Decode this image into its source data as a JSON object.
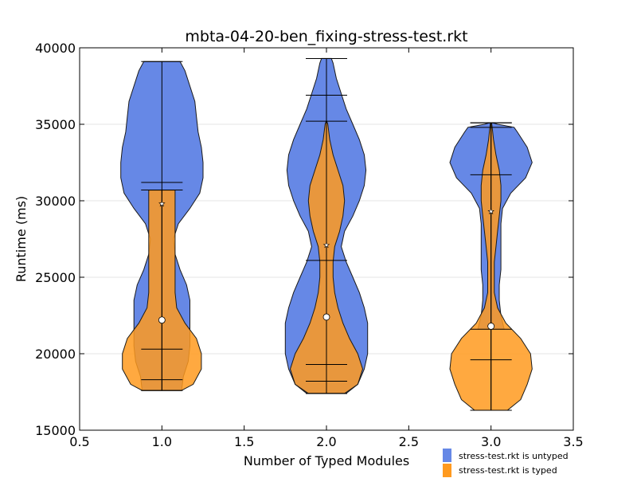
{
  "chart_data": {
    "type": "violin",
    "title": "mbta-04-20-ben_fixing-stress-test.rkt",
    "xlabel": "Number of Typed Modules",
    "ylabel": "Runtime (ms)",
    "xlim": [
      0.5,
      3.5
    ],
    "ylim": [
      15000,
      40000
    ],
    "xticks": [
      "0.5",
      "1.0",
      "1.5",
      "2.0",
      "2.5",
      "3.0",
      "3.5"
    ],
    "xtick_values": [
      0.5,
      1.0,
      1.5,
      2.0,
      2.5,
      3.0,
      3.5
    ],
    "yticks": [
      "15000",
      "20000",
      "25000",
      "30000",
      "35000",
      "40000"
    ],
    "ytick_values": [
      15000,
      20000,
      25000,
      30000,
      35000,
      40000
    ],
    "grid": "horizontal",
    "legend_position": "below-right",
    "series": [
      {
        "name": "stress-test.rkt is untyped",
        "color": "#6688e6",
        "violins": [
          {
            "x": 1.0,
            "min": 17600,
            "max": 39100,
            "mean": 22200,
            "lines": [
              31200,
              20300
            ],
            "profile": [
              [
                17600,
                0.12
              ],
              [
                18500,
                0.13
              ],
              [
                19500,
                0.16
              ],
              [
                20500,
                0.17
              ],
              [
                21500,
                0.17
              ],
              [
                22500,
                0.17
              ],
              [
                23500,
                0.17
              ],
              [
                24500,
                0.15
              ],
              [
                25500,
                0.11
              ],
              [
                26500,
                0.08
              ],
              [
                27500,
                0.07
              ],
              [
                28500,
                0.1
              ],
              [
                29500,
                0.17
              ],
              [
                30500,
                0.23
              ],
              [
                31500,
                0.25
              ],
              [
                32500,
                0.25
              ],
              [
                33500,
                0.24
              ],
              [
                34500,
                0.22
              ],
              [
                35500,
                0.21
              ],
              [
                36500,
                0.2
              ],
              [
                37500,
                0.17
              ],
              [
                38500,
                0.14
              ],
              [
                39100,
                0.11
              ]
            ]
          },
          {
            "x": 2.0,
            "min": 17400,
            "max": 39300,
            "mean": 22400,
            "lines": [
              36900,
              26100,
              19300
            ],
            "profile": [
              [
                17400,
                0.12
              ],
              [
                18000,
                0.19
              ],
              [
                19000,
                0.23
              ],
              [
                20000,
                0.25
              ],
              [
                21000,
                0.25
              ],
              [
                22000,
                0.25
              ],
              [
                23000,
                0.23
              ],
              [
                24000,
                0.2
              ],
              [
                25000,
                0.16
              ],
              [
                26000,
                0.12
              ],
              [
                27000,
                0.09
              ],
              [
                28000,
                0.11
              ],
              [
                29000,
                0.16
              ],
              [
                30000,
                0.2
              ],
              [
                31000,
                0.23
              ],
              [
                32000,
                0.24
              ],
              [
                33000,
                0.23
              ],
              [
                34000,
                0.2
              ],
              [
                35000,
                0.16
              ],
              [
                36000,
                0.12
              ],
              [
                37000,
                0.09
              ],
              [
                38000,
                0.06
              ],
              [
                39000,
                0.04
              ],
              [
                39300,
                0.03
              ]
            ]
          },
          {
            "x": 3.0,
            "min": 16300,
            "max": 35100,
            "mean": 21800,
            "lines": [
              34800,
              31700,
              21600
            ],
            "profile": [
              [
                21600,
                0.08
              ],
              [
                22500,
                0.06
              ],
              [
                23500,
                0.05
              ],
              [
                24500,
                0.05
              ],
              [
                25500,
                0.06
              ],
              [
                26500,
                0.06
              ],
              [
                27500,
                0.06
              ],
              [
                28500,
                0.06
              ],
              [
                29500,
                0.07
              ],
              [
                30500,
                0.12
              ],
              [
                31500,
                0.21
              ],
              [
                32500,
                0.25
              ],
              [
                33500,
                0.22
              ],
              [
                34500,
                0.16
              ],
              [
                34800,
                0.14
              ],
              [
                35000,
                0.04
              ],
              [
                35100,
                0.01
              ]
            ]
          }
        ]
      },
      {
        "name": "stress-test.rkt is typed",
        "color": "#ff9a1f",
        "violins": [
          {
            "x": 1.0,
            "min": 17600,
            "max": 30700,
            "mean": 29800,
            "lines": [
              30700,
              18300
            ],
            "profile": [
              [
                17600,
                0.12
              ],
              [
                18000,
                0.19
              ],
              [
                19000,
                0.24
              ],
              [
                20000,
                0.24
              ],
              [
                21000,
                0.21
              ],
              [
                22000,
                0.14
              ],
              [
                23000,
                0.09
              ],
              [
                24000,
                0.08
              ],
              [
                25000,
                0.08
              ],
              [
                26000,
                0.08
              ],
              [
                27000,
                0.08
              ],
              [
                28000,
                0.08
              ],
              [
                29000,
                0.08
              ],
              [
                30000,
                0.08
              ],
              [
                30700,
                0.08
              ]
            ]
          },
          {
            "x": 2.0,
            "min": 17400,
            "max": 35200,
            "mean": 27100,
            "lines": [
              18200
            ],
            "profile": [
              [
                17400,
                0.11
              ],
              [
                18000,
                0.19
              ],
              [
                19000,
                0.22
              ],
              [
                20000,
                0.19
              ],
              [
                21000,
                0.14
              ],
              [
                22000,
                0.1
              ],
              [
                23000,
                0.07
              ],
              [
                24000,
                0.05
              ],
              [
                25000,
                0.04
              ],
              [
                26000,
                0.04
              ],
              [
                27000,
                0.05
              ],
              [
                28000,
                0.08
              ],
              [
                29000,
                0.1
              ],
              [
                30000,
                0.11
              ],
              [
                31000,
                0.1
              ],
              [
                32000,
                0.07
              ],
              [
                33000,
                0.04
              ],
              [
                34000,
                0.02
              ],
              [
                35000,
                0.008
              ],
              [
                35200,
                0.002
              ]
            ]
          },
          {
            "x": 3.0,
            "min": 16300,
            "max": 35100,
            "mean": 29300,
            "lines": [
              35100,
              19600
            ],
            "profile": [
              [
                16300,
                0.1
              ],
              [
                17000,
                0.18
              ],
              [
                18000,
                0.22
              ],
              [
                19000,
                0.25
              ],
              [
                20000,
                0.24
              ],
              [
                21000,
                0.18
              ],
              [
                22000,
                0.09
              ],
              [
                23000,
                0.04
              ],
              [
                24000,
                0.02
              ],
              [
                25000,
                0.02
              ],
              [
                26000,
                0.02
              ],
              [
                27000,
                0.03
              ],
              [
                28000,
                0.04
              ],
              [
                29000,
                0.05
              ],
              [
                30000,
                0.06
              ],
              [
                31000,
                0.06
              ],
              [
                32000,
                0.05
              ],
              [
                33000,
                0.03
              ],
              [
                34000,
                0.015
              ],
              [
                35000,
                0.005
              ],
              [
                35100,
                0.002
              ]
            ]
          }
        ]
      }
    ]
  }
}
